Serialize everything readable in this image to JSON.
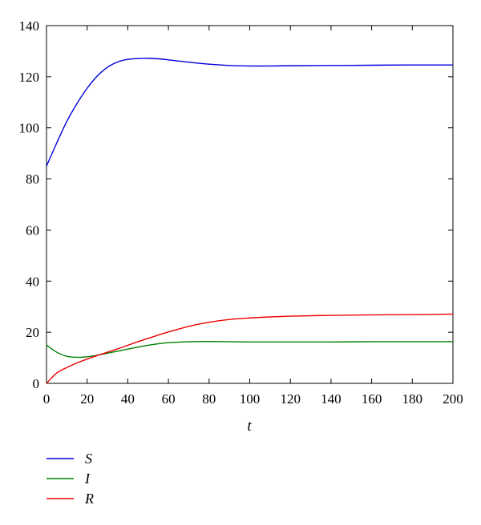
{
  "chart_data": {
    "type": "line",
    "xlabel": "t",
    "ylabel": "",
    "xlim": [
      0,
      200
    ],
    "ylim": [
      0,
      140
    ],
    "xticks": [
      0,
      20,
      40,
      60,
      80,
      100,
      120,
      140,
      160,
      180,
      200
    ],
    "yticks": [
      0,
      20,
      40,
      60,
      80,
      100,
      120,
      140
    ],
    "grid": false,
    "legend_placement": "below",
    "x": [
      0,
      5,
      10,
      15,
      20,
      25,
      30,
      35,
      40,
      45,
      50,
      55,
      60,
      70,
      80,
      90,
      100,
      110,
      120,
      140,
      160,
      180,
      200
    ],
    "series": [
      {
        "name": "S",
        "color": "#0000dd",
        "values": [
          85,
          94,
          102.5,
          109.5,
          115.5,
          120.3,
          123.7,
          125.8,
          126.8,
          127.1,
          127.2,
          127,
          126.6,
          125.7,
          124.9,
          124.4,
          124.2,
          124.2,
          124.3,
          124.4,
          124.5,
          124.6,
          124.6
        ]
      },
      {
        "name": "I",
        "color": "#008000",
        "values": [
          15,
          12.2,
          10.6,
          10.2,
          10.4,
          11,
          11.8,
          12.6,
          13.4,
          14.2,
          14.9,
          15.5,
          15.9,
          16.3,
          16.4,
          16.3,
          16.2,
          16.2,
          16.2,
          16.2,
          16.3,
          16.3,
          16.3
        ]
      },
      {
        "name": "R",
        "color": "#ee0000",
        "values": [
          0,
          4,
          6.2,
          8,
          9.5,
          10.9,
          12.2,
          13.5,
          14.9,
          16.3,
          17.6,
          18.9,
          20.1,
          22.3,
          23.9,
          25,
          25.6,
          26,
          26.3,
          26.6,
          26.8,
          26.9,
          27.1
        ]
      }
    ]
  }
}
